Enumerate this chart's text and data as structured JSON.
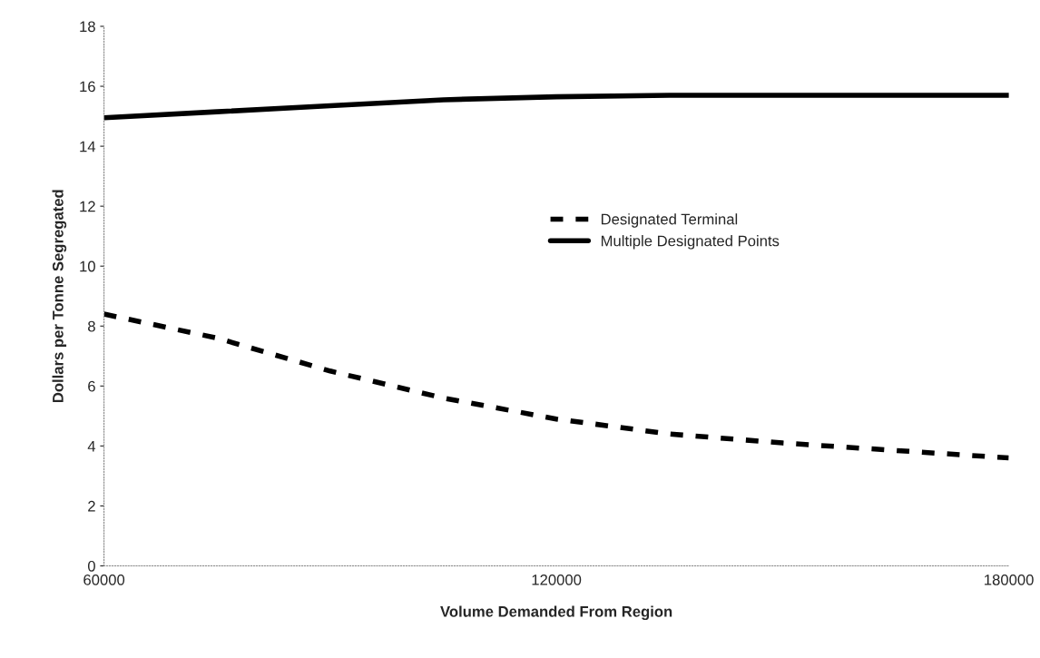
{
  "chart_data": {
    "type": "line",
    "xlabel": "Volume Demanded From Region",
    "ylabel": "Dollars per Tonne Segregated",
    "x": [
      60000,
      75000,
      90000,
      105000,
      120000,
      135000,
      150000,
      165000,
      180000
    ],
    "series": [
      {
        "name": "Designated Terminal",
        "color": "#000000",
        "line_style": "dashed",
        "values": [
          8.4,
          7.6,
          6.5,
          5.6,
          4.9,
          4.4,
          4.1,
          3.85,
          3.6
        ]
      },
      {
        "name": "Multiple Designated Points",
        "color": "#000000",
        "line_style": "solid",
        "values": [
          14.95,
          15.15,
          15.35,
          15.55,
          15.65,
          15.7,
          15.7,
          15.7,
          15.7
        ]
      }
    ],
    "xlim": [
      60000,
      180000
    ],
    "xticks": [
      60000,
      120000,
      180000
    ],
    "ylim": [
      0,
      18
    ],
    "yticks": [
      0,
      2,
      4,
      6,
      8,
      10,
      12,
      14,
      16,
      18
    ],
    "grid": false,
    "legend": "center",
    "marker": "none"
  }
}
